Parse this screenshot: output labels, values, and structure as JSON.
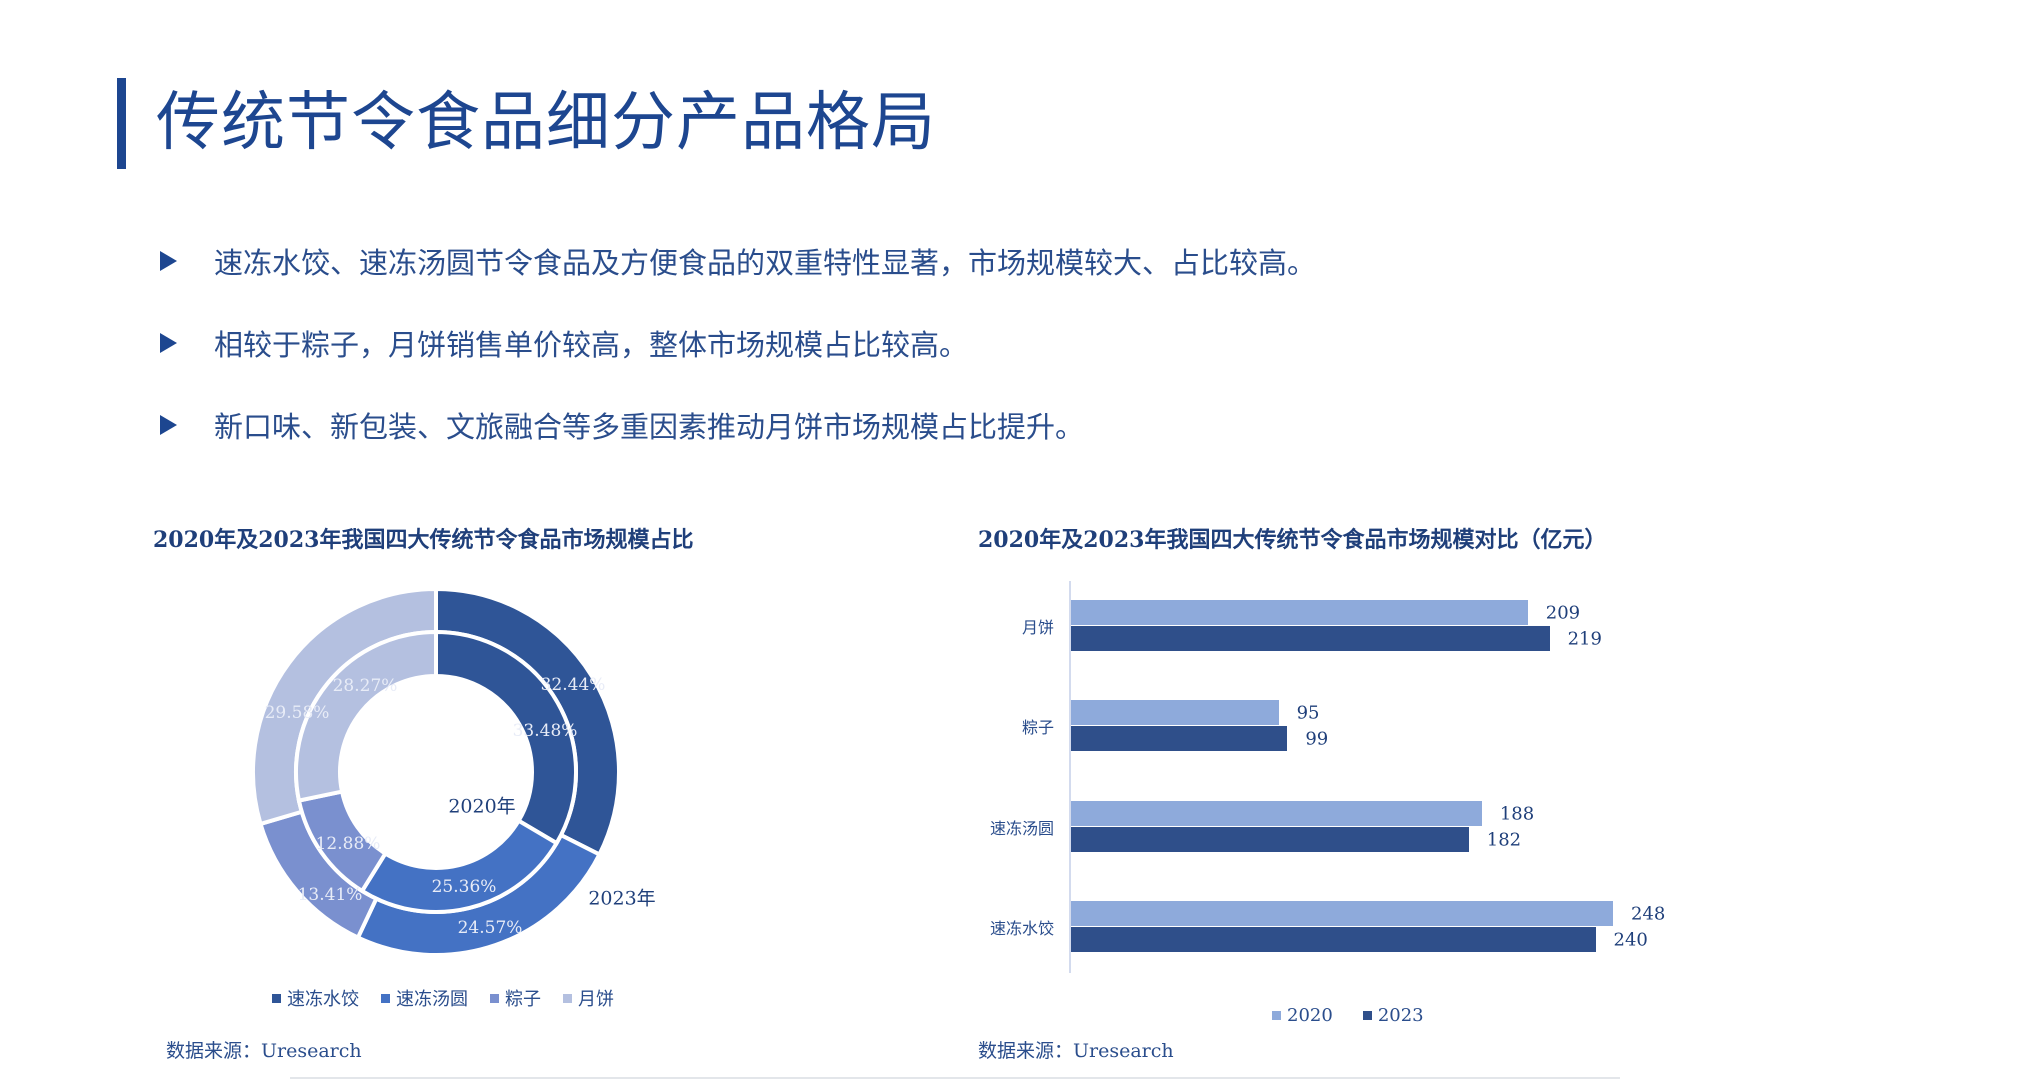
{
  "page": {
    "title": "传统节令食品细分产品格局",
    "accent_color": "#1d4690",
    "bullets": [
      "速冻水饺、速冻汤圆节令食品及方便食品的双重特性显著，市场规模较大、占比较高。",
      "相较于粽子，月饼销售单价较高，整体市场规模占比较高。",
      "新口味、新包装、文旅融合等多重因素推动月饼市场规模占比提升。"
    ]
  },
  "left_chart": {
    "title": "2020年及2023年我国四大传统节令食品市场规模占比",
    "inner_ring_label": "2020年",
    "outer_ring_label": "2023年",
    "legend": [
      {
        "label": "速冻水饺",
        "color": "#2f5597"
      },
      {
        "label": "速冻汤圆",
        "color": "#4472c4"
      },
      {
        "label": "粽子",
        "color": "#7a90cf"
      },
      {
        "label": "月饼",
        "color": "#b4c0e0"
      }
    ],
    "inner_labels": [
      "33.48%",
      "25.36%",
      "12.88%",
      "28.27%"
    ],
    "outer_labels": [
      "32.44%",
      "24.57%",
      "13.41%",
      "29.58%"
    ],
    "source": "数据来源：Uresearch"
  },
  "right_chart": {
    "title": "2020年及2023年我国四大传统节令食品市场规模对比（亿元）",
    "categories": [
      "月饼",
      "粽子",
      "速冻汤圆",
      "速冻水饺"
    ],
    "values_2020": [
      "209",
      "95",
      "188",
      "248"
    ],
    "values_2023": [
      "219",
      "99",
      "182",
      "240"
    ],
    "legend": [
      {
        "label": "2020",
        "color": "#8eaadb"
      },
      {
        "label": "2023",
        "color": "#2f4f8a"
      }
    ],
    "source": "数据来源：Uresearch"
  },
  "chart_data": [
    {
      "type": "pie",
      "subtype": "donut-nested",
      "title": "2020年及2023年我国四大传统节令食品市场规模占比",
      "categories": [
        "速冻水饺",
        "速冻汤圆",
        "粽子",
        "月饼"
      ],
      "series": [
        {
          "name": "2020年",
          "ring": "inner",
          "values": [
            33.48,
            25.36,
            12.88,
            28.27
          ]
        },
        {
          "name": "2023年",
          "ring": "outer",
          "values": [
            32.44,
            24.57,
            13.41,
            29.58
          ]
        }
      ],
      "unit": "%",
      "legend_position": "bottom"
    },
    {
      "type": "bar",
      "orientation": "horizontal",
      "title": "2020年及2023年我国四大传统节令食品市场规模对比（亿元）",
      "categories": [
        "月饼",
        "粽子",
        "速冻汤圆",
        "速冻水饺"
      ],
      "series": [
        {
          "name": "2020",
          "values": [
            209,
            95,
            188,
            248
          ]
        },
        {
          "name": "2023",
          "values": [
            219,
            99,
            182,
            240
          ]
        }
      ],
      "xlabel": "",
      "ylabel": "",
      "unit": "亿元",
      "grid": false,
      "legend_position": "bottom"
    }
  ]
}
